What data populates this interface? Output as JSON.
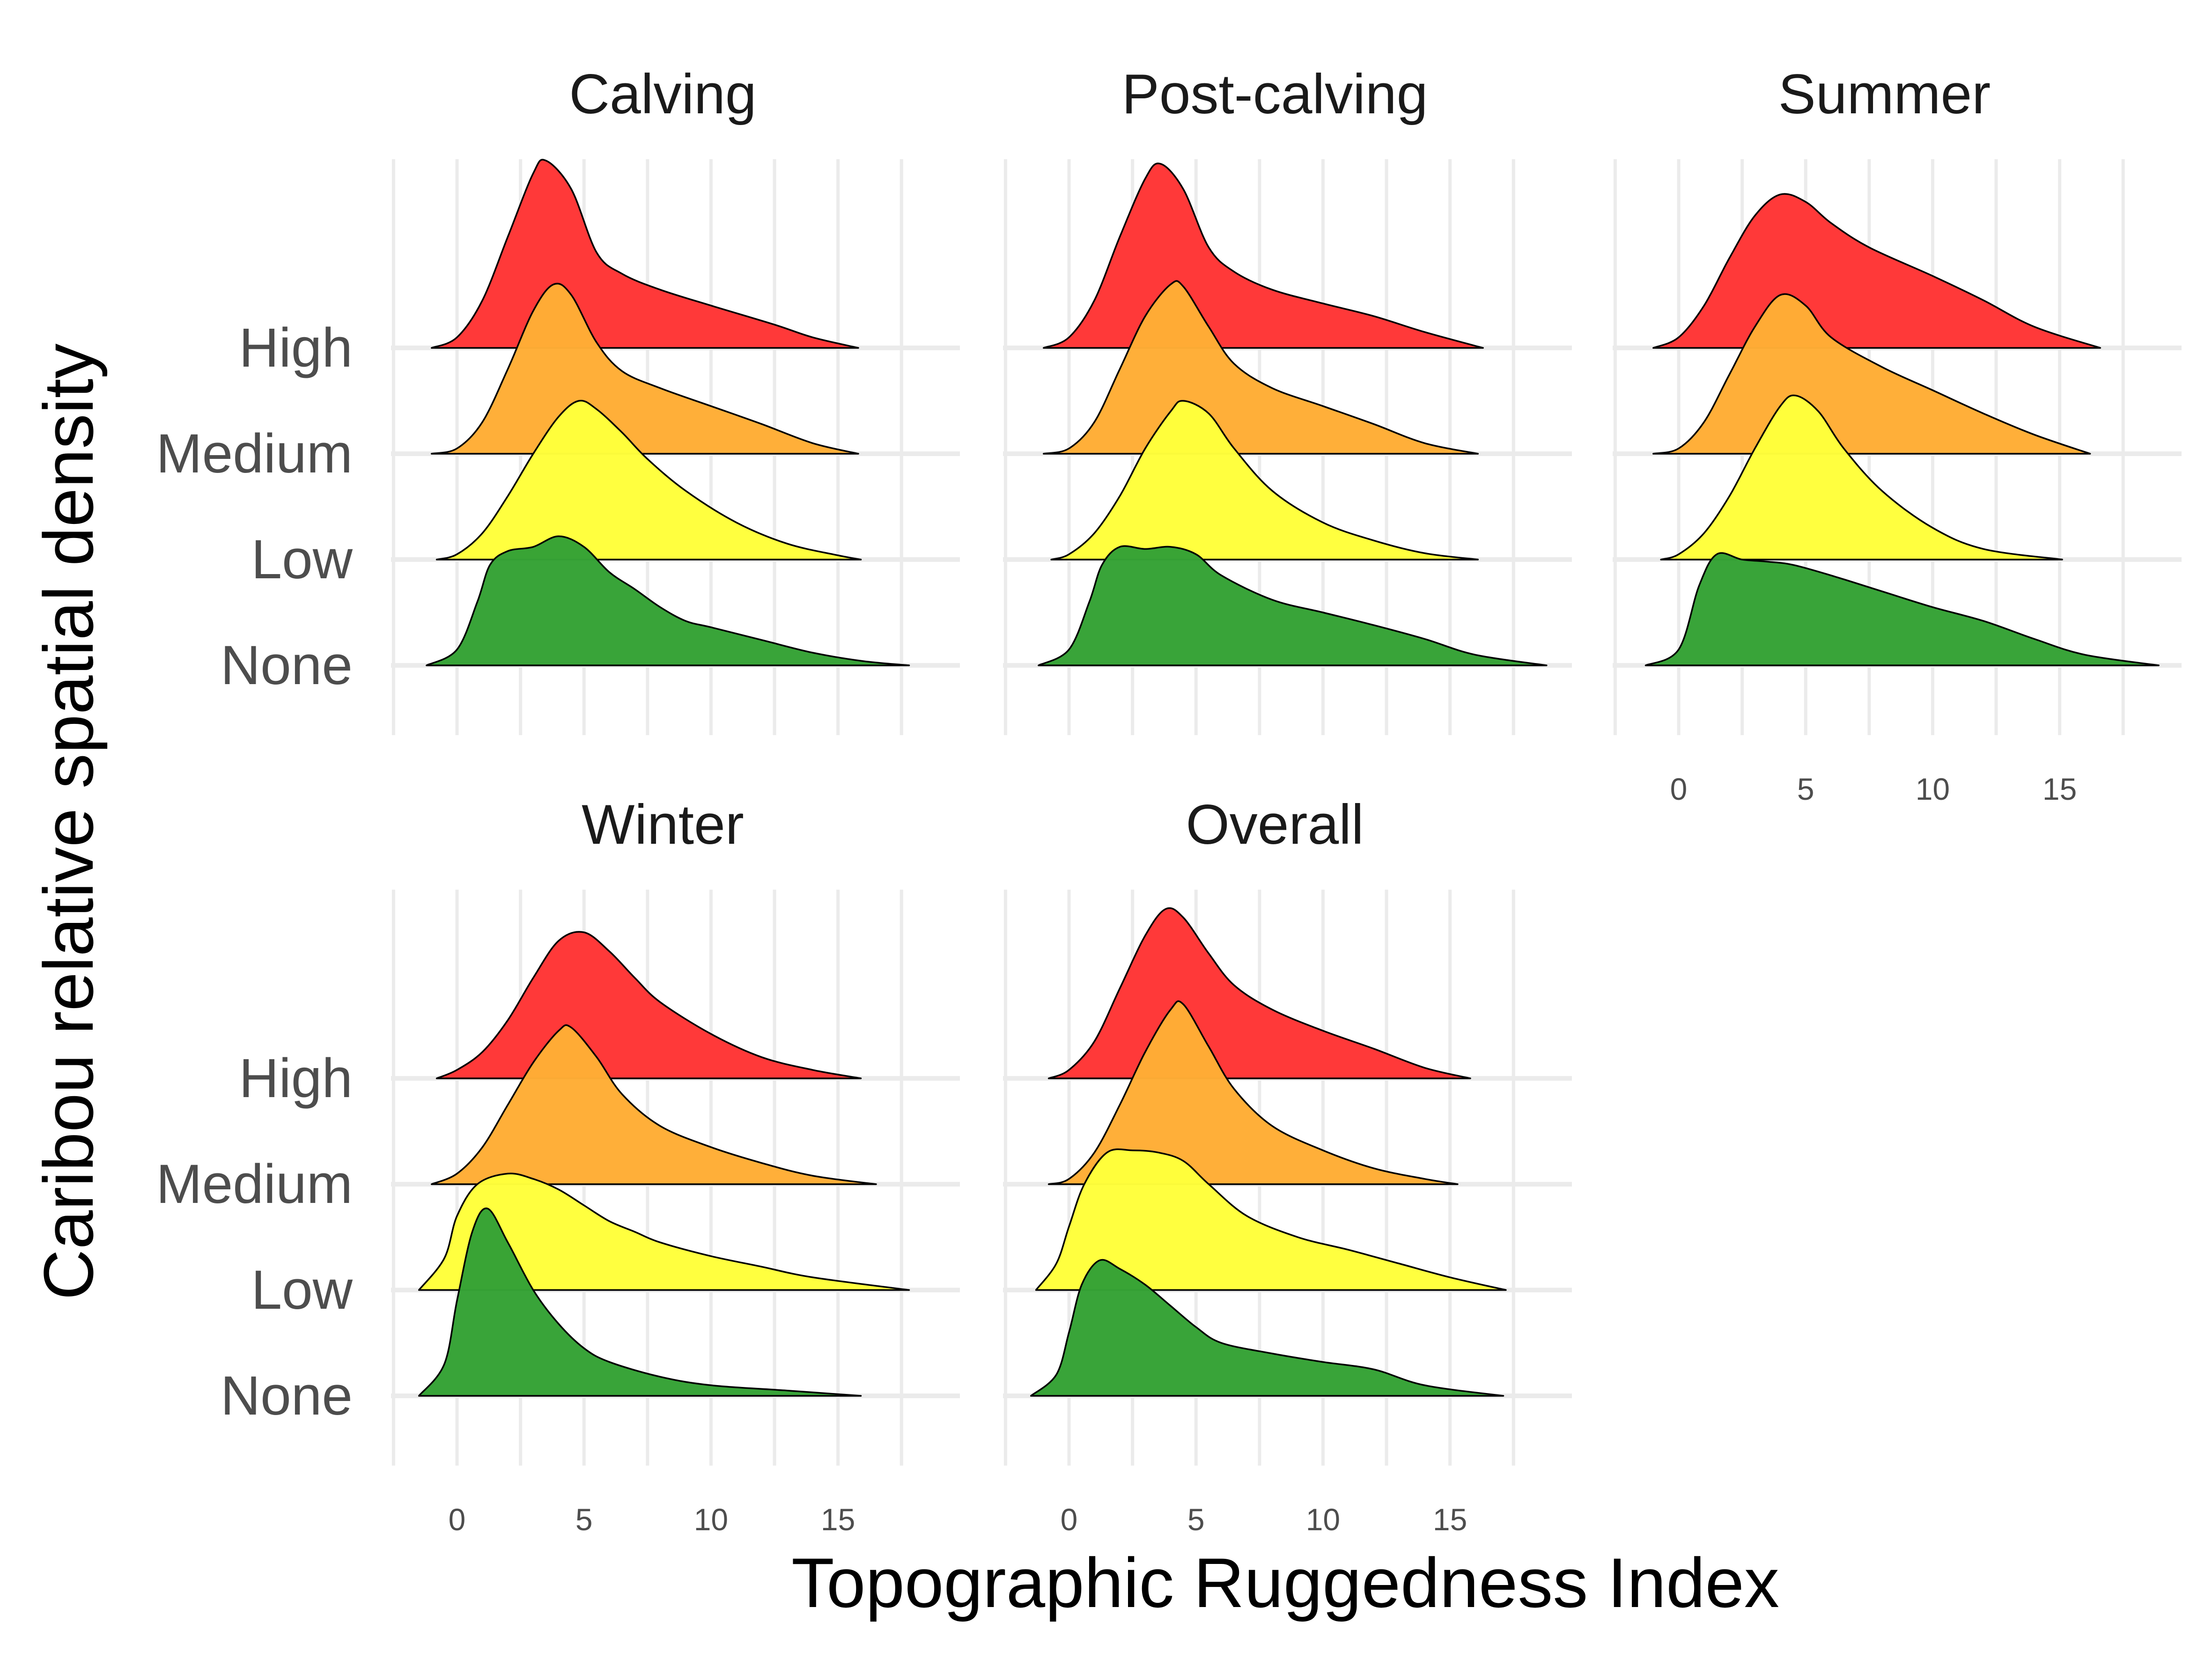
{
  "chart_data": {
    "type": "ridgeline",
    "xlabel": "Topographic Ruggedness Index",
    "ylabel": "Caribou relative spatial density",
    "xlim": [
      -2.6,
      19.8
    ],
    "x_ticks": [
      0,
      5,
      10,
      15
    ],
    "categories": [
      "None",
      "Low",
      "Medium",
      "High"
    ],
    "colors": {
      "None": "#35a235",
      "Low": "#ffff3b",
      "Medium": "#ffad35",
      "High": "#ff3535"
    },
    "overlap_note": "",
    "panels": [
      {
        "title": "Calving",
        "series": [
          {
            "name": "None",
            "x": [
              -1.2,
              0,
              0.8,
              1.3,
              2,
              3,
              4,
              5,
              6,
              7,
              8,
              9,
              10,
              12,
              14,
              16,
              17.8
            ],
            "h": [
              0,
              0.15,
              0.6,
              0.95,
              1.08,
              1.12,
              1.22,
              1.12,
              0.88,
              0.72,
              0.55,
              0.42,
              0.36,
              0.24,
              0.12,
              0.04,
              0
            ]
          },
          {
            "name": "Low",
            "x": [
              -0.8,
              0,
              1,
              2,
              3,
              4,
              4.8,
              5.5,
              6.5,
              7.5,
              9,
              11,
              13,
              15,
              15.9
            ],
            "h": [
              0,
              0.05,
              0.25,
              0.6,
              1.0,
              1.35,
              1.5,
              1.42,
              1.2,
              0.95,
              0.65,
              0.35,
              0.15,
              0.04,
              0
            ]
          },
          {
            "name": "Medium",
            "x": [
              -1,
              0,
              1,
              2,
              3,
              3.8,
              4.5,
              5.5,
              6.5,
              8,
              10,
              12,
              14,
              15.8
            ],
            "h": [
              0,
              0.05,
              0.3,
              0.8,
              1.35,
              1.6,
              1.5,
              1.05,
              0.78,
              0.62,
              0.45,
              0.28,
              0.1,
              0
            ]
          },
          {
            "name": "High",
            "x": [
              -1,
              0,
              1,
              2,
              3,
              3.5,
              4.5,
              5.5,
              6.5,
              8,
              10,
              12.5,
              14,
              15.8
            ],
            "h": [
              0,
              0.1,
              0.45,
              1.05,
              1.65,
              1.77,
              1.5,
              0.9,
              0.7,
              0.55,
              0.4,
              0.22,
              0.1,
              0
            ]
          }
        ]
      },
      {
        "title": "Post-calving",
        "series": [
          {
            "name": "None",
            "x": [
              -1.2,
              0,
              0.8,
              1.3,
              2,
              3,
              4,
              5,
              6,
              8,
              10,
              12,
              14,
              16,
              18.8
            ],
            "h": [
              0,
              0.15,
              0.6,
              0.95,
              1.12,
              1.1,
              1.12,
              1.05,
              0.85,
              0.62,
              0.5,
              0.38,
              0.25,
              0.1,
              0
            ]
          },
          {
            "name": "Low",
            "x": [
              -0.7,
              0,
              1,
              2,
              3,
              4,
              4.5,
              5.5,
              6.5,
              8,
              10,
              12,
              14,
              16.1
            ],
            "h": [
              0,
              0.05,
              0.25,
              0.6,
              1.05,
              1.4,
              1.5,
              1.38,
              1.05,
              0.65,
              0.35,
              0.18,
              0.06,
              0
            ]
          },
          {
            "name": "Medium",
            "x": [
              -1,
              0,
              1,
              2,
              3,
              4,
              4.5,
              5.5,
              6.5,
              8,
              10,
              12,
              14,
              16.1
            ],
            "h": [
              0,
              0.05,
              0.3,
              0.8,
              1.3,
              1.6,
              1.58,
              1.2,
              0.85,
              0.62,
              0.45,
              0.28,
              0.1,
              0
            ]
          },
          {
            "name": "High",
            "x": [
              -1,
              0,
              1,
              2,
              3,
              3.6,
              4.5,
              5.5,
              6.5,
              8,
              10,
              12,
              14,
              16.3
            ],
            "h": [
              0,
              0.1,
              0.45,
              1.05,
              1.6,
              1.74,
              1.5,
              0.95,
              0.72,
              0.55,
              0.42,
              0.3,
              0.15,
              0
            ]
          }
        ]
      },
      {
        "title": "Summer",
        "series": [
          {
            "name": "None",
            "x": [
              -1.3,
              0,
              0.8,
              1.5,
              2.5,
              3.5,
              4.5,
              6,
              8,
              10,
              12,
              14,
              16,
              18.9
            ],
            "h": [
              0,
              0.15,
              0.75,
              1.05,
              1.0,
              0.98,
              0.95,
              0.85,
              0.7,
              0.55,
              0.42,
              0.25,
              0.1,
              0
            ]
          },
          {
            "name": "Low",
            "x": [
              -0.7,
              0,
              1,
              2,
              3,
              4,
              4.6,
              5.5,
              6.5,
              8,
              10,
              12,
              15.1
            ],
            "h": [
              0,
              0.05,
              0.25,
              0.6,
              1.05,
              1.45,
              1.55,
              1.4,
              1.05,
              0.65,
              0.3,
              0.1,
              0
            ]
          },
          {
            "name": "Medium",
            "x": [
              -1,
              0,
              1,
              2,
              3,
              4,
              5,
              6,
              8,
              10,
              12,
              14,
              16.2
            ],
            "h": [
              0,
              0.05,
              0.3,
              0.75,
              1.2,
              1.5,
              1.4,
              1.1,
              0.82,
              0.6,
              0.38,
              0.18,
              0
            ]
          },
          {
            "name": "High",
            "x": [
              -1,
              0,
              1,
              2,
              3,
              4,
              5,
              6,
              7.5,
              10,
              12,
              14,
              16.6
            ],
            "h": [
              0,
              0.1,
              0.4,
              0.85,
              1.25,
              1.45,
              1.38,
              1.18,
              0.95,
              0.68,
              0.45,
              0.2,
              0
            ]
          }
        ]
      },
      {
        "title": "Winter",
        "series": [
          {
            "name": "None",
            "x": [
              -1.5,
              -0.5,
              0,
              0.6,
              1.2,
              2,
              3,
              4,
              5,
              6,
              8,
              10,
              13,
              15.9
            ],
            "h": [
              0,
              0.3,
              0.9,
              1.55,
              1.77,
              1.45,
              1.0,
              0.68,
              0.45,
              0.32,
              0.18,
              0.1,
              0.05,
              0
            ]
          },
          {
            "name": "Low",
            "x": [
              -1.5,
              -0.5,
              0,
              0.8,
              2,
              3,
              4,
              5,
              6,
              7,
              8,
              10,
              12,
              14,
              17.8
            ],
            "h": [
              0,
              0.3,
              0.7,
              1.0,
              1.1,
              1.05,
              0.95,
              0.8,
              0.65,
              0.55,
              0.45,
              0.32,
              0.22,
              0.12,
              0
            ]
          },
          {
            "name": "Medium",
            "x": [
              -1,
              0,
              1,
              2,
              3,
              4,
              4.5,
              5.5,
              6.5,
              8,
              10,
              12,
              14,
              16.5
            ],
            "h": [
              0,
              0.1,
              0.35,
              0.75,
              1.15,
              1.45,
              1.48,
              1.2,
              0.85,
              0.55,
              0.35,
              0.2,
              0.08,
              0
            ]
          },
          {
            "name": "High",
            "x": [
              -0.8,
              0,
              1,
              2,
              3,
              4,
              5,
              6,
              7,
              8,
              10,
              12,
              14,
              15.9
            ],
            "h": [
              0,
              0.08,
              0.25,
              0.55,
              0.95,
              1.3,
              1.38,
              1.2,
              0.95,
              0.72,
              0.42,
              0.2,
              0.08,
              0
            ]
          }
        ]
      },
      {
        "title": "Overall",
        "series": [
          {
            "name": "None",
            "x": [
              -1.5,
              -0.5,
              0,
              0.5,
              1.2,
              2,
              3,
              4,
              5,
              6,
              8,
              10,
              12,
              14,
              17.1
            ],
            "h": [
              0,
              0.2,
              0.6,
              1.05,
              1.28,
              1.2,
              1.05,
              0.85,
              0.65,
              0.5,
              0.4,
              0.32,
              0.25,
              0.1,
              0
            ]
          },
          {
            "name": "Low",
            "x": [
              -1.3,
              -0.5,
              0,
              0.6,
              1.5,
              2.5,
              3.5,
              4.5,
              5.5,
              7,
              9,
              11,
              13,
              15,
              17.2
            ],
            "h": [
              0,
              0.25,
              0.6,
              1.0,
              1.3,
              1.32,
              1.3,
              1.22,
              1.0,
              0.7,
              0.5,
              0.38,
              0.25,
              0.12,
              0
            ]
          },
          {
            "name": "Medium",
            "x": [
              -0.8,
              0,
              1,
              2,
              3,
              4,
              4.5,
              5.5,
              6.5,
              8,
              10,
              12,
              14,
              15.3
            ],
            "h": [
              0,
              0.05,
              0.3,
              0.75,
              1.25,
              1.65,
              1.7,
              1.3,
              0.9,
              0.55,
              0.32,
              0.15,
              0.05,
              0
            ]
          },
          {
            "name": "High",
            "x": [
              -0.8,
              0,
              1,
              2,
              3,
              3.8,
              4.5,
              5.5,
              6.5,
              8,
              10,
              12,
              14,
              15.8
            ],
            "h": [
              0,
              0.08,
              0.35,
              0.85,
              1.35,
              1.6,
              1.52,
              1.18,
              0.88,
              0.65,
              0.45,
              0.28,
              0.1,
              0
            ]
          }
        ]
      }
    ]
  }
}
